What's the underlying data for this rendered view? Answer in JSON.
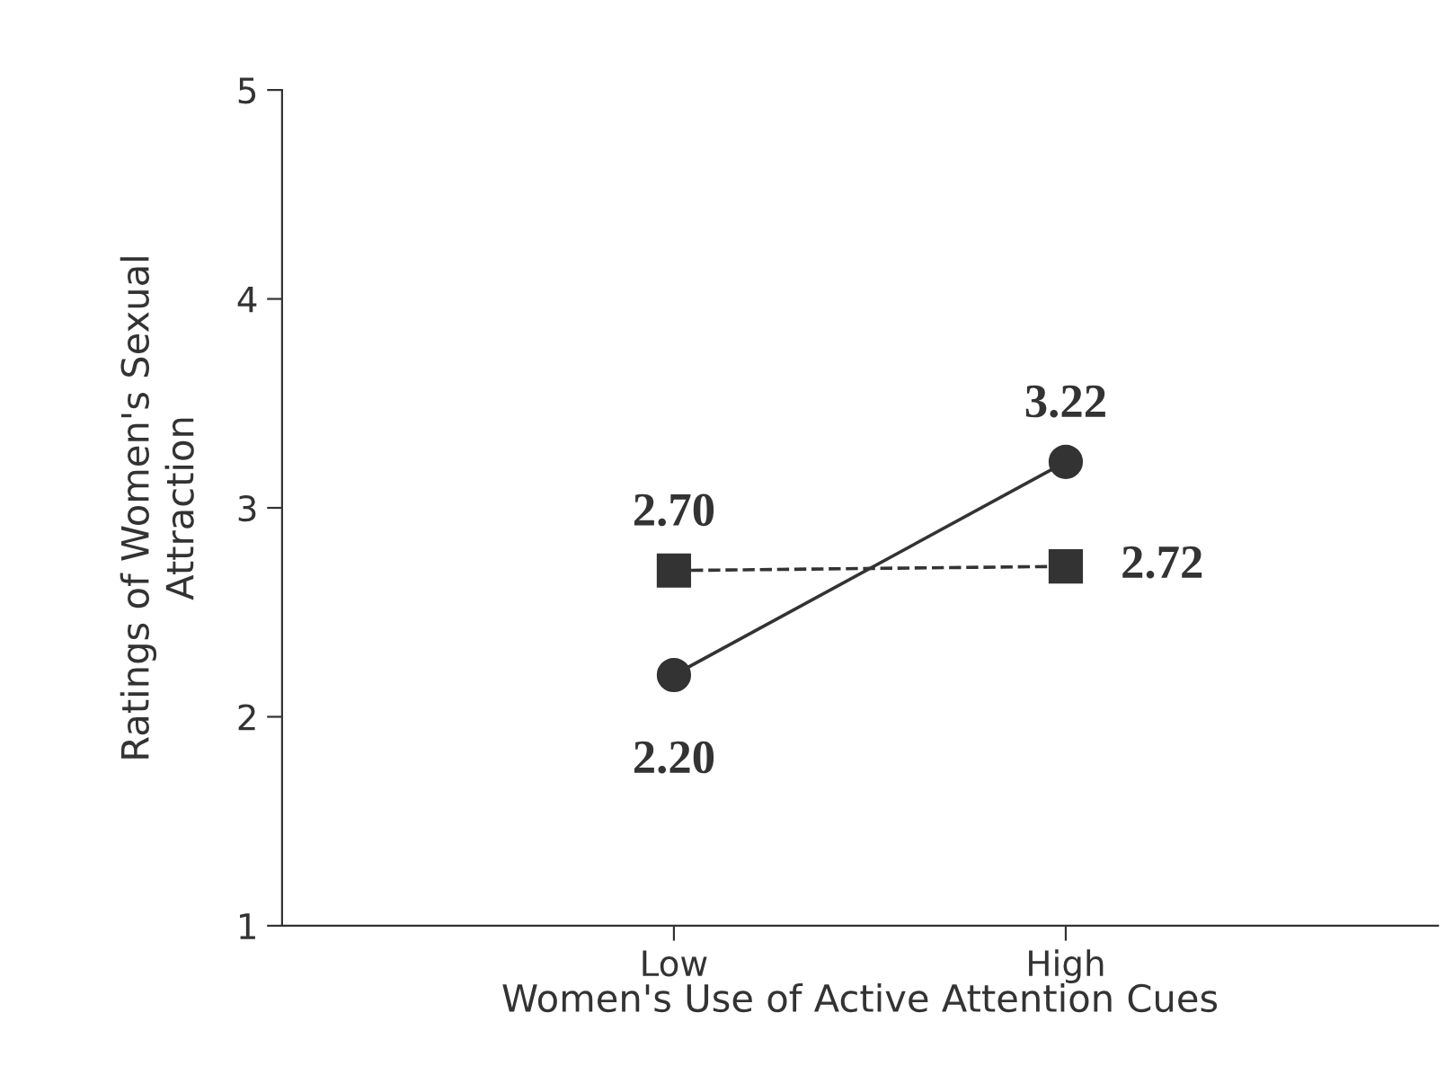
{
  "chart_data": {
    "type": "line",
    "xlabel": "Women's Use of Active Attention Cues",
    "ylabel": "Ratings of Women's Sexual\nAttraction",
    "categories": [
      "Low",
      "High"
    ],
    "series": [
      {
        "color": "#333333",
        "values": [
          2.2,
          3.22
        ],
        "value_labels": [
          "2.20",
          "3.22"
        ],
        "marker": "circle",
        "line_style": "solid"
      },
      {
        "color": "#333333",
        "values": [
          2.7,
          2.72
        ],
        "value_labels": [
          "2.70",
          "2.72"
        ],
        "marker": "square",
        "line_style": "dashed"
      }
    ],
    "ylim": [
      1,
      5
    ],
    "yticks": [
      1,
      2,
      3,
      4,
      5
    ],
    "grid": false,
    "legend": false
  }
}
